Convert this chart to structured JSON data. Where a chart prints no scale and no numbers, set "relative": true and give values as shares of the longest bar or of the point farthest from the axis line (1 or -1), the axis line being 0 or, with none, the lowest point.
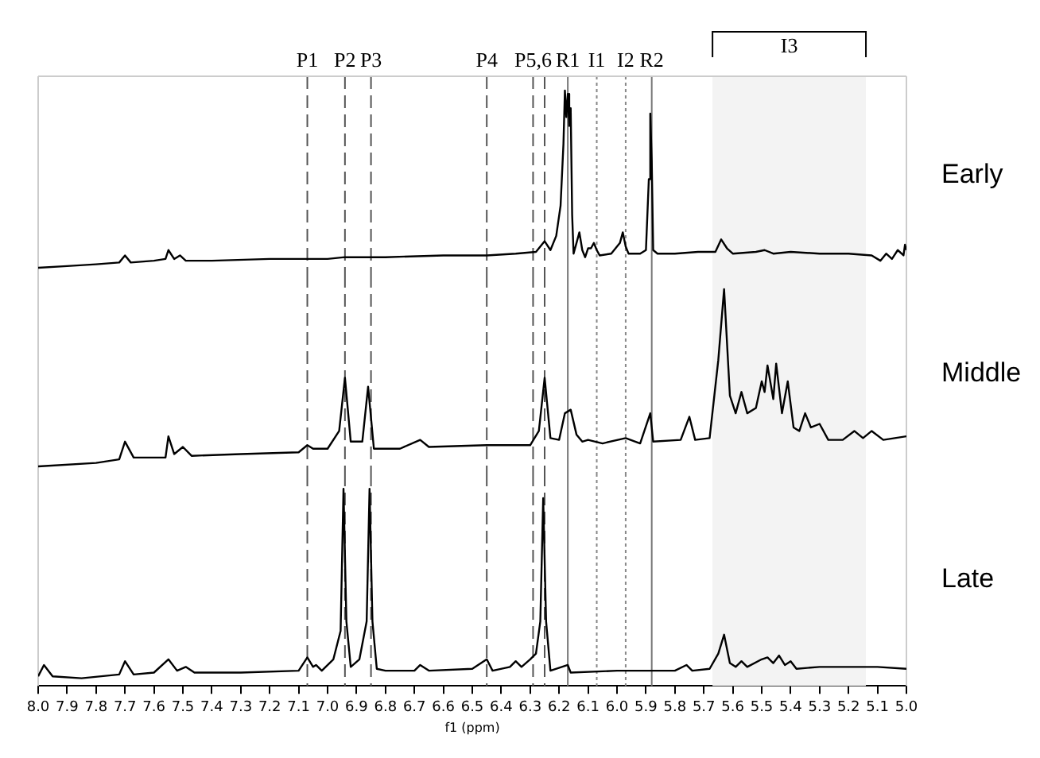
{
  "chart_data": [
    {
      "type": "line",
      "relative": true,
      "tick_labels": false,
      "marker": "none",
      "line_style": "solid",
      "xlim": [
        8.0,
        5.0
      ],
      "series": [
        {
          "name": "Early",
          "color": "#000000",
          "x": [
            8.0,
            7.9,
            7.8,
            7.72,
            7.7,
            7.68,
            7.6,
            7.56,
            7.55,
            7.53,
            7.51,
            7.49,
            7.4,
            7.2,
            7.0,
            6.94,
            6.8,
            6.6,
            6.45,
            6.35,
            6.28,
            6.25,
            6.23,
            6.21,
            6.195,
            6.185,
            6.18,
            6.175,
            6.17,
            6.165,
            6.16,
            6.155,
            6.15,
            6.14,
            6.13,
            6.12,
            6.11,
            6.1,
            6.09,
            6.08,
            6.07,
            6.06,
            6.02,
            5.99,
            5.98,
            5.97,
            5.96,
            5.92,
            5.9,
            5.89,
            5.885,
            5.88,
            5.875,
            5.86,
            5.8,
            5.72,
            5.66,
            5.64,
            5.62,
            5.6,
            5.52,
            5.49,
            5.46,
            5.4,
            5.3,
            5.2,
            5.12,
            5.09,
            5.07,
            5.05,
            5.03,
            5.01,
            5.005,
            5.0
          ],
          "values": [
            0,
            0.01,
            0.02,
            0.03,
            0.07,
            0.03,
            0.04,
            0.05,
            0.1,
            0.05,
            0.07,
            0.04,
            0.04,
            0.05,
            0.05,
            0.06,
            0.06,
            0.07,
            0.07,
            0.08,
            0.09,
            0.15,
            0.1,
            0.18,
            0.35,
            0.7,
            1.0,
            0.85,
            0.98,
            0.8,
            0.9,
            0.3,
            0.08,
            0.14,
            0.2,
            0.1,
            0.06,
            0.11,
            0.11,
            0.14,
            0.1,
            0.07,
            0.08,
            0.14,
            0.2,
            0.12,
            0.08,
            0.08,
            0.1,
            0.5,
            0.87,
            0.6,
            0.1,
            0.08,
            0.08,
            0.09,
            0.09,
            0.16,
            0.11,
            0.08,
            0.09,
            0.1,
            0.08,
            0.09,
            0.08,
            0.08,
            0.07,
            0.04,
            0.08,
            0.05,
            0.1,
            0.07,
            0.13,
            0.1
          ]
        }
      ],
      "ref_lines": [
        {
          "axis": "x",
          "value": 7.07,
          "label": "P1",
          "color": "#555555",
          "line_style": "dashed"
        },
        {
          "axis": "x",
          "value": 6.94,
          "label": "P2",
          "color": "#555555",
          "line_style": "dashed"
        },
        {
          "axis": "x",
          "value": 6.85,
          "label": "P3",
          "color": "#555555",
          "line_style": "dashed"
        },
        {
          "axis": "x",
          "value": 6.45,
          "label": "P4",
          "color": "#555555",
          "line_style": "dashed"
        },
        {
          "axis": "x",
          "value": 6.29,
          "label": "P5,6",
          "color": "#555555",
          "line_style": "dashed"
        },
        {
          "axis": "x",
          "value": 6.25,
          "label": null,
          "color": "#555555",
          "line_style": "dashed"
        },
        {
          "axis": "x",
          "value": 6.17,
          "label": "R1",
          "color": "#777777",
          "line_style": "solid"
        },
        {
          "axis": "x",
          "value": 6.07,
          "label": "I1",
          "color": "#888888",
          "line_style": "dotted"
        },
        {
          "axis": "x",
          "value": 5.97,
          "label": "I2",
          "color": "#888888",
          "line_style": "dotted"
        },
        {
          "axis": "x",
          "value": 5.88,
          "label": "R2",
          "color": "#777777",
          "line_style": "solid"
        }
      ],
      "bands": [
        {
          "axis": "x",
          "from": 5.67,
          "to": 5.14,
          "label": "I3",
          "color": "#f3f3f3"
        }
      ]
    },
    {
      "type": "line",
      "relative": true,
      "tick_labels": false,
      "marker": "none",
      "line_style": "solid",
      "xlim": [
        8.0,
        5.0
      ],
      "series": [
        {
          "name": "Middle",
          "color": "#000000",
          "x": [
            8.0,
            7.8,
            7.72,
            7.7,
            7.67,
            7.56,
            7.55,
            7.53,
            7.5,
            7.47,
            7.3,
            7.1,
            7.07,
            7.05,
            7.0,
            6.96,
            6.94,
            6.92,
            6.88,
            6.86,
            6.84,
            6.75,
            6.68,
            6.65,
            6.45,
            6.3,
            6.27,
            6.25,
            6.23,
            6.2,
            6.18,
            6.16,
            6.14,
            6.12,
            6.1,
            6.05,
            5.97,
            5.92,
            5.885,
            5.875,
            5.78,
            5.75,
            5.73,
            5.68,
            5.65,
            5.63,
            5.61,
            5.59,
            5.57,
            5.55,
            5.52,
            5.5,
            5.49,
            5.48,
            5.46,
            5.45,
            5.43,
            5.41,
            5.39,
            5.37,
            5.35,
            5.33,
            5.3,
            5.27,
            5.22,
            5.18,
            5.15,
            5.12,
            5.08,
            5.04,
            5.0
          ],
          "values": [
            0,
            0.02,
            0.04,
            0.14,
            0.05,
            0.05,
            0.17,
            0.07,
            0.11,
            0.06,
            0.07,
            0.08,
            0.12,
            0.1,
            0.1,
            0.2,
            0.5,
            0.14,
            0.14,
            0.45,
            0.1,
            0.1,
            0.15,
            0.11,
            0.12,
            0.12,
            0.2,
            0.5,
            0.16,
            0.15,
            0.3,
            0.32,
            0.18,
            0.14,
            0.15,
            0.13,
            0.16,
            0.13,
            0.3,
            0.14,
            0.15,
            0.28,
            0.15,
            0.16,
            0.6,
            1.0,
            0.4,
            0.3,
            0.42,
            0.3,
            0.33,
            0.48,
            0.42,
            0.57,
            0.38,
            0.58,
            0.3,
            0.48,
            0.22,
            0.2,
            0.3,
            0.22,
            0.24,
            0.15,
            0.15,
            0.2,
            0.16,
            0.2,
            0.15,
            0.16,
            0.17
          ]
        }
      ],
      "ref_lines": [
        {
          "axis": "x",
          "value": 7.07,
          "color": "#555555",
          "line_style": "dashed"
        },
        {
          "axis": "x",
          "value": 6.94,
          "color": "#555555",
          "line_style": "dashed"
        },
        {
          "axis": "x",
          "value": 6.85,
          "color": "#555555",
          "line_style": "dashed"
        },
        {
          "axis": "x",
          "value": 6.45,
          "color": "#555555",
          "line_style": "dashed"
        },
        {
          "axis": "x",
          "value": 6.29,
          "color": "#555555",
          "line_style": "dashed"
        },
        {
          "axis": "x",
          "value": 6.25,
          "color": "#555555",
          "line_style": "dashed"
        },
        {
          "axis": "x",
          "value": 6.17,
          "color": "#777777",
          "line_style": "solid"
        },
        {
          "axis": "x",
          "value": 6.07,
          "color": "#888888",
          "line_style": "dotted"
        },
        {
          "axis": "x",
          "value": 5.97,
          "color": "#888888",
          "line_style": "dotted"
        },
        {
          "axis": "x",
          "value": 5.88,
          "color": "#777777",
          "line_style": "solid"
        }
      ],
      "bands": [
        {
          "axis": "x",
          "from": 5.67,
          "to": 5.14,
          "color": "#f3f3f3"
        }
      ]
    },
    {
      "type": "line",
      "relative": true,
      "tick_labels": "x",
      "marker": "none",
      "line_style": "solid",
      "xlim": [
        8.0,
        5.0
      ],
      "xlabel": "f1 (ppm)",
      "xticks": [
        {
          "value": 8.0,
          "label": "8.0"
        },
        7.9,
        7.8,
        7.7,
        7.6,
        7.5,
        7.4,
        7.3,
        7.2,
        7.1,
        {
          "value": 7.0,
          "label": "7.0"
        },
        6.9,
        6.8,
        6.7,
        6.6,
        6.5,
        6.4,
        6.3,
        6.2,
        6.1,
        {
          "value": 6.0,
          "label": "6.0"
        },
        5.9,
        5.8,
        5.7,
        5.6,
        5.5,
        5.4,
        5.3,
        5.2,
        5.1,
        {
          "value": 5.0,
          "label": "5.0"
        }
      ],
      "series": [
        {
          "name": "Late",
          "color": "#000000",
          "x": [
            8.0,
            7.98,
            7.95,
            7.85,
            7.72,
            7.7,
            7.67,
            7.6,
            7.55,
            7.52,
            7.49,
            7.46,
            7.3,
            7.1,
            7.07,
            7.05,
            7.04,
            7.02,
            6.98,
            6.955,
            6.945,
            6.935,
            6.92,
            6.89,
            6.865,
            6.855,
            6.845,
            6.83,
            6.8,
            6.7,
            6.68,
            6.65,
            6.5,
            6.45,
            6.43,
            6.37,
            6.35,
            6.33,
            6.3,
            6.28,
            6.265,
            6.255,
            6.245,
            6.23,
            6.17,
            6.16,
            6.0,
            5.8,
            5.76,
            5.74,
            5.68,
            5.65,
            5.63,
            5.61,
            5.59,
            5.57,
            5.55,
            5.5,
            5.48,
            5.46,
            5.44,
            5.42,
            5.4,
            5.38,
            5.3,
            5.2,
            5.1,
            5.0
          ],
          "values": [
            0.01,
            0.07,
            0.01,
            0,
            0.02,
            0.09,
            0.02,
            0.03,
            0.1,
            0.04,
            0.06,
            0.03,
            0.03,
            0.04,
            0.11,
            0.06,
            0.07,
            0.04,
            0.1,
            0.25,
            1.0,
            0.3,
            0.06,
            0.1,
            0.3,
            1.0,
            0.3,
            0.05,
            0.04,
            0.04,
            0.07,
            0.04,
            0.05,
            0.1,
            0.04,
            0.06,
            0.09,
            0.06,
            0.1,
            0.13,
            0.3,
            0.95,
            0.3,
            0.04,
            0.07,
            0.03,
            0.04,
            0.04,
            0.07,
            0.04,
            0.05,
            0.13,
            0.23,
            0.08,
            0.06,
            0.09,
            0.06,
            0.1,
            0.11,
            0.08,
            0.12,
            0.07,
            0.09,
            0.05,
            0.06,
            0.06,
            0.06,
            0.05
          ]
        }
      ],
      "ref_lines": [
        {
          "axis": "x",
          "value": 7.07,
          "color": "#555555",
          "line_style": "dashed"
        },
        {
          "axis": "x",
          "value": 6.94,
          "color": "#555555",
          "line_style": "dashed"
        },
        {
          "axis": "x",
          "value": 6.85,
          "color": "#555555",
          "line_style": "dashed"
        },
        {
          "axis": "x",
          "value": 6.45,
          "color": "#555555",
          "line_style": "dashed"
        },
        {
          "axis": "x",
          "value": 6.29,
          "color": "#555555",
          "line_style": "dashed"
        },
        {
          "axis": "x",
          "value": 6.25,
          "color": "#555555",
          "line_style": "dashed"
        },
        {
          "axis": "x",
          "value": 6.17,
          "color": "#777777",
          "line_style": "solid"
        },
        {
          "axis": "x",
          "value": 6.07,
          "color": "#888888",
          "line_style": "dotted"
        },
        {
          "axis": "x",
          "value": 5.97,
          "color": "#888888",
          "line_style": "dotted"
        },
        {
          "axis": "x",
          "value": 5.88,
          "color": "#777777",
          "line_style": "solid"
        }
      ],
      "bands": [
        {
          "axis": "x",
          "from": 5.67,
          "to": 5.14,
          "color": "#f3f3f3"
        }
      ]
    }
  ]
}
